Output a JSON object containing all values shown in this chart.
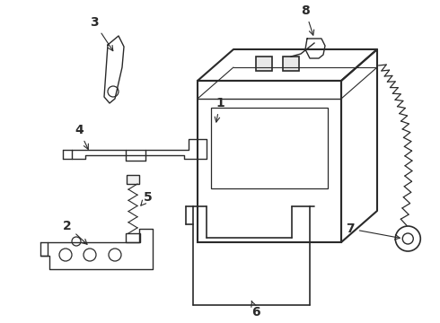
{
  "bg_color": "#ffffff",
  "line_color": "#2a2a2a",
  "figsize": [
    4.9,
    3.6
  ],
  "dpi": 100,
  "xlim": [
    0,
    490
  ],
  "ylim": [
    0,
    360
  ]
}
